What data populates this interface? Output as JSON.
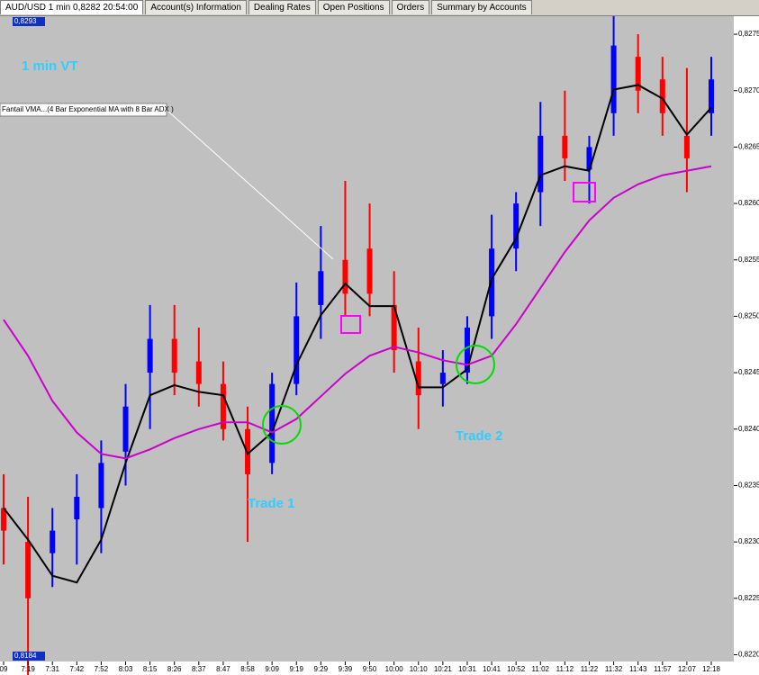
{
  "tabs": [
    "AUD/USD 1 min 0,8282 20:54:00",
    "Account(s) Information",
    "Dealing Rates",
    "Open Positions",
    "Orders",
    "Summary by Accounts"
  ],
  "chart_data": {
    "type": "candlestick",
    "annotations": [
      "1 min VT",
      "Fantail VMA...(4 Bar Exponential MA with 8 Bar ADX )",
      "Trade 1",
      "Trade 2"
    ],
    "price_tags": [
      "0,8293",
      "0,8184"
    ],
    "categories": [
      "09",
      "7:19",
      "7:31",
      "7:42",
      "7:52",
      "8:03",
      "8:15",
      "8:26",
      "8:37",
      "8:47",
      "8:58",
      "9:09",
      "9:19",
      "9:29",
      "9:39",
      "9:50",
      "10:00",
      "10:10",
      "10:21",
      "10:31",
      "10:41",
      "10:52",
      "11:02",
      "11:12",
      "11:22",
      "11:32",
      "11:43",
      "11:57",
      "12:07",
      "12:18"
    ],
    "open": [
      0.8233,
      0.823,
      0.8229,
      0.8232,
      0.8233,
      0.8238,
      0.8245,
      0.8248,
      0.8246,
      0.8244,
      0.824,
      0.8237,
      0.8244,
      0.8251,
      0.8255,
      0.8256,
      0.8251,
      0.8246,
      0.8244,
      0.8245,
      0.825,
      0.8256,
      0.8261,
      0.8266,
      0.8263,
      0.8268,
      0.8273,
      0.8271,
      0.8266,
      0.8268
    ],
    "high": [
      0.8236,
      0.8234,
      0.8233,
      0.8236,
      0.8239,
      0.8244,
      0.8251,
      0.8251,
      0.8249,
      0.8246,
      0.8242,
      0.8245,
      0.8253,
      0.8258,
      0.8262,
      0.826,
      0.8254,
      0.8249,
      0.8247,
      0.825,
      0.8259,
      0.8261,
      0.8269,
      0.827,
      0.8266,
      0.8278,
      0.8275,
      0.8273,
      0.8272,
      0.8273
    ],
    "low": [
      0.8228,
      0.8218,
      0.8226,
      0.8228,
      0.8229,
      0.8235,
      0.824,
      0.8243,
      0.8242,
      0.8239,
      0.823,
      0.8236,
      0.8243,
      0.8248,
      0.825,
      0.825,
      0.8245,
      0.824,
      0.8242,
      0.8244,
      0.8248,
      0.8254,
      0.8258,
      0.8262,
      0.826,
      0.8266,
      0.8268,
      0.8266,
      0.8261,
      0.8266
    ],
    "close": [
      0.8231,
      0.8225,
      0.8231,
      0.8234,
      0.8237,
      0.8242,
      0.8248,
      0.8245,
      0.8244,
      0.824,
      0.8236,
      0.8244,
      0.825,
      0.8254,
      0.8252,
      0.8252,
      0.8247,
      0.8243,
      0.8245,
      0.8249,
      0.8256,
      0.826,
      0.8266,
      0.8264,
      0.8265,
      0.8274,
      0.827,
      0.8268,
      0.8264,
      0.8271
    ],
    "up_color": "#0000ff",
    "down_color": "#ff0000",
    "series": [
      {
        "color": "#000000",
        "values": [
          0.8233,
          0.82302,
          0.8227,
          0.82264,
          0.82302,
          0.8237,
          0.8243,
          0.82439,
          0.82433,
          0.8243,
          0.82378,
          0.82397,
          0.82457,
          0.82501,
          0.82529,
          0.82509,
          0.82509,
          0.82437,
          0.82437,
          0.82453,
          0.82533,
          0.82569,
          0.82625,
          0.82633,
          0.82629,
          0.82701,
          0.82705,
          0.82693,
          0.82661,
          0.82685
        ]
      },
      {
        "color": "#cc00cc",
        "values": [
          0.82497,
          0.82465,
          0.82425,
          0.82397,
          0.82378,
          0.82374,
          0.82382,
          0.82392,
          0.824,
          0.82406,
          0.82406,
          0.82397,
          0.82409,
          0.82429,
          0.82449,
          0.82465,
          0.82473,
          0.82468,
          0.82461,
          0.82457,
          0.82465,
          0.82493,
          0.82525,
          0.82557,
          0.82585,
          0.82605,
          0.82617,
          0.82625,
          0.82629,
          0.82633
        ]
      }
    ],
    "ylim": [
      0.82194,
      0.82766
    ],
    "yticks": [
      {
        "value": 0.822,
        "label": "0,8220"
      },
      {
        "value": 0.8225,
        "label": "0,8225"
      },
      {
        "value": 0.823,
        "label": "0,8230"
      },
      {
        "value": 0.8235,
        "label": "0,8235"
      },
      {
        "value": 0.824,
        "label": "0,8240"
      },
      {
        "value": 0.8245,
        "label": "0,8245"
      },
      {
        "value": 0.825,
        "label": "0,8250"
      },
      {
        "value": 0.8255,
        "label": "0,8255"
      },
      {
        "value": 0.826,
        "label": "0,8260"
      },
      {
        "value": 0.8265,
        "label": "0,8265"
      },
      {
        "value": 0.827,
        "label": "0,8270"
      },
      {
        "value": 0.8275,
        "label": "0,8275"
      }
    ],
    "grid": false
  }
}
